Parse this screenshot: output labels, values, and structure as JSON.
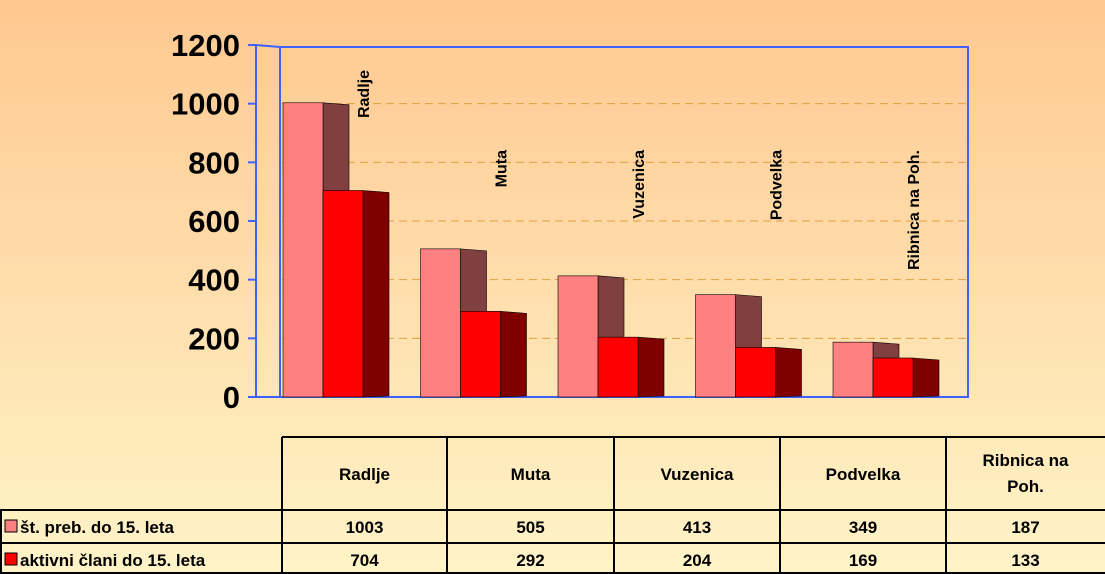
{
  "chart_data": {
    "type": "bar3d",
    "categories": [
      "Radlje",
      "Muta",
      "Vuzenica",
      "Podvelka",
      "Ribnica na Poh."
    ],
    "series": [
      {
        "name": "št. preb. do 15. leta",
        "color": "#ff8080",
        "values": [
          1003,
          505,
          413,
          349,
          187
        ]
      },
      {
        "name": "aktivni člani do 15. leta",
        "color": "#ff0000",
        "values": [
          704,
          292,
          204,
          169,
          133
        ]
      }
    ],
    "ylim": [
      0,
      1200
    ],
    "yticks": [
      0,
      200,
      400,
      600,
      800,
      1000,
      1200
    ],
    "grid": true
  }
}
